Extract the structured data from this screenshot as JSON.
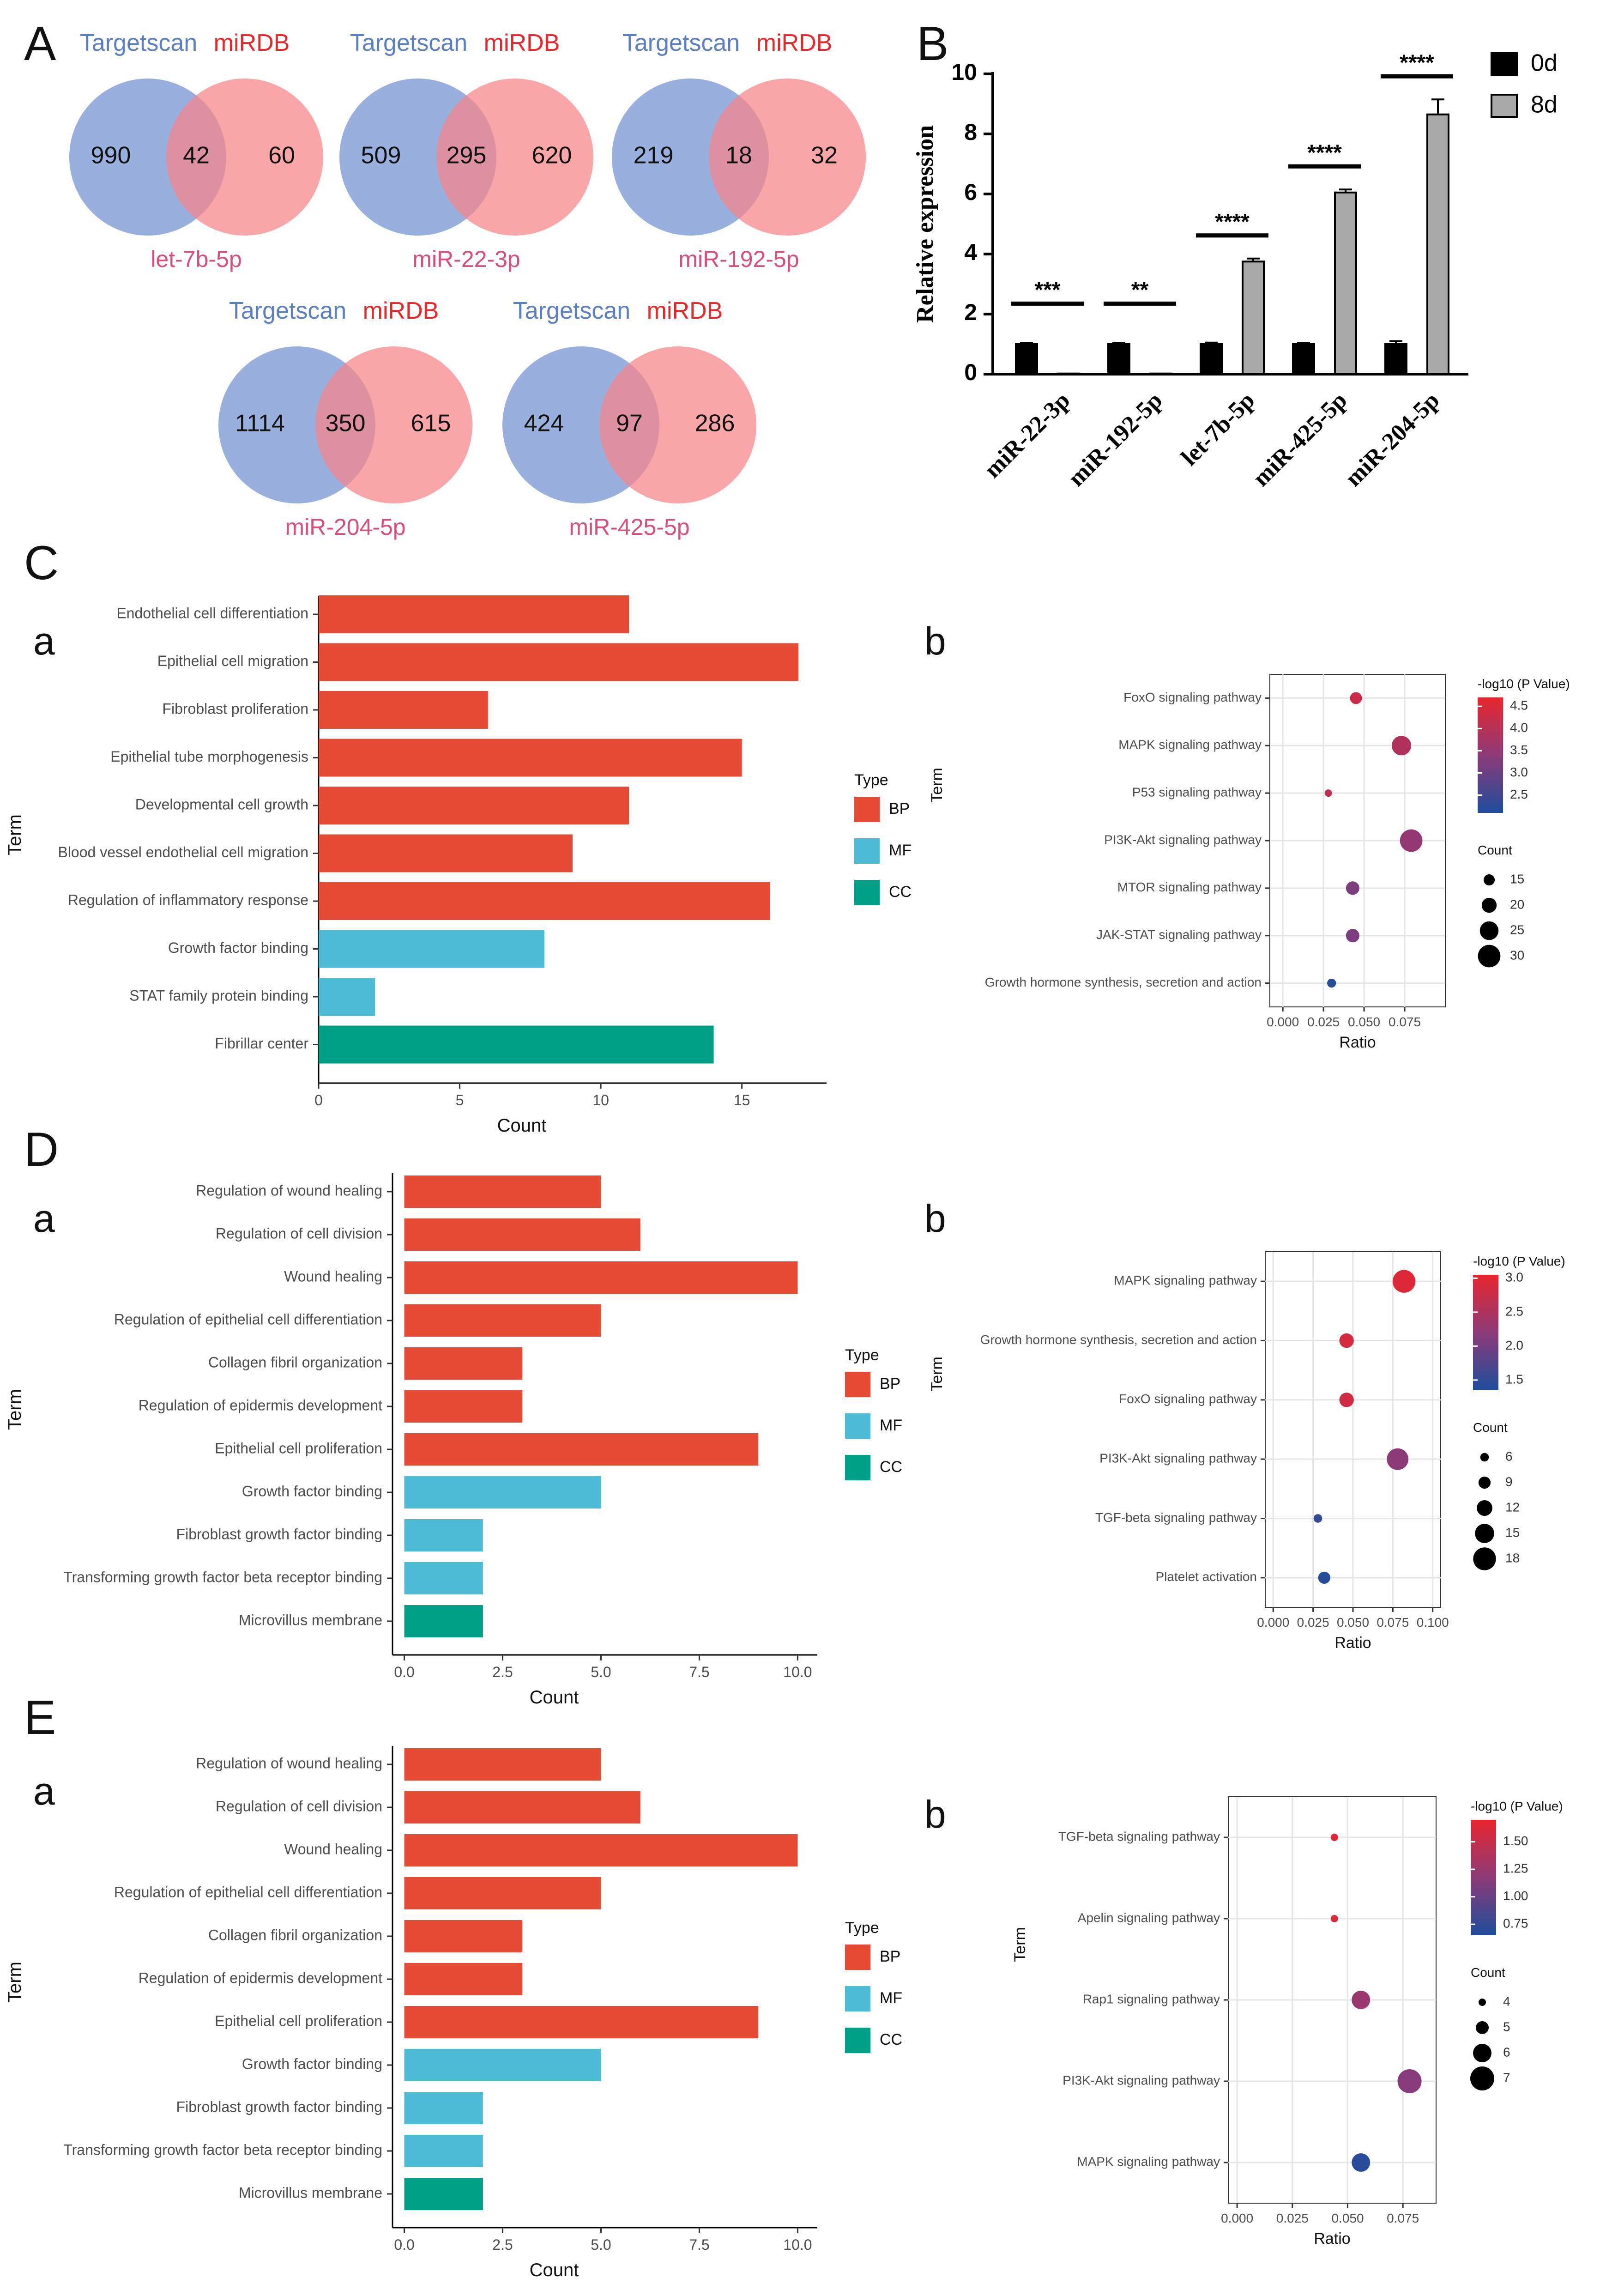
{
  "panels": {
    "A": "A",
    "B": "B",
    "C": "C",
    "D": "D",
    "E": "E",
    "Ca": "a",
    "Cb": "b",
    "Da": "a",
    "Db": "b",
    "Ea": "a",
    "Eb": "b"
  },
  "colors": {
    "targetscan": "#5b7fc4",
    "mirdb": "#e8272a",
    "mirna_label": "#d8507a",
    "venn_left": "#7f9bd6",
    "venn_right": "#f68486",
    "bp": "#e64b35",
    "mf": "#4dbbd5",
    "cc": "#00a087",
    "grad_high": "#e8262e",
    "grad_low": "#1e4d9c"
  },
  "venns": [
    {
      "mirna": "let-7b-5p",
      "left_label": "Targetscan",
      "right_label": "miRDB",
      "left_only": "990",
      "overlap": "42",
      "right_only": "60"
    },
    {
      "mirna": "miR-22-3p",
      "left_label": "Targetscan",
      "right_label": "miRDB",
      "left_only": "509",
      "overlap": "295",
      "right_only": "620"
    },
    {
      "mirna": "miR-192-5p",
      "left_label": "Targetscan",
      "right_label": "miRDB",
      "left_only": "219",
      "overlap": "18",
      "right_only": "32"
    },
    {
      "mirna": "miR-204-5p",
      "left_label": "Targetscan",
      "right_label": "miRDB",
      "left_only": "1114",
      "overlap": "350",
      "right_only": "615"
    },
    {
      "mirna": "miR-425-5p",
      "left_label": "Targetscan",
      "right_label": "miRDB",
      "left_only": "424",
      "overlap": "97",
      "right_only": "286"
    }
  ],
  "chart_data": [
    {
      "id": "B",
      "type": "bar",
      "ylabel": "Relative  expression",
      "ylim": [
        0,
        10
      ],
      "yticks": [
        "0",
        "2",
        "4",
        "6",
        "8",
        "10"
      ],
      "categories": [
        "miR-22-3p",
        "miR-192-5p",
        "let-7b-5p",
        "miR-425-5p",
        "miR-204-5p"
      ],
      "series": [
        {
          "name": "0d",
          "values": [
            1.0,
            1.0,
            1.0,
            1.0,
            1.0
          ],
          "errors": [
            0.04,
            0.04,
            0.05,
            0.04,
            0.1
          ],
          "color": "#000000"
        },
        {
          "name": "8d",
          "values": [
            0.02,
            0.02,
            3.75,
            6.05,
            8.65
          ],
          "errors": [
            0.0,
            0.0,
            0.1,
            0.1,
            0.5
          ],
          "color": "#a8a8a8"
        }
      ],
      "significance": [
        "***",
        "**",
        "****",
        "****",
        "****"
      ],
      "legend": "top-right"
    },
    {
      "id": "C-a",
      "type": "bar",
      "orientation": "horizontal",
      "xlabel": "Count",
      "ylabel": "Term",
      "xlim": [
        0,
        18
      ],
      "xticks": [
        "0",
        "5",
        "10",
        "15"
      ],
      "legend_title": "Type",
      "legend": [
        "BP",
        "MF",
        "CC"
      ],
      "categories": [
        "Endothelial cell differentiation",
        "Epithelial cell migration",
        "Fibroblast proliferation",
        "Epithelial tube morphogenesis",
        "Developmental cell growth",
        "Blood vessel endothelial cell migration",
        "Regulation of inflammatory response",
        "Growth factor binding",
        "STAT family protein binding",
        "Fibrillar center"
      ],
      "values": [
        11,
        17,
        6,
        15,
        11,
        9,
        16,
        8,
        2,
        14
      ],
      "types": [
        "BP",
        "BP",
        "BP",
        "BP",
        "BP",
        "BP",
        "BP",
        "MF",
        "MF",
        "CC"
      ]
    },
    {
      "id": "C-b",
      "type": "scatter",
      "xlabel": "Ratio",
      "ylabel": "Term",
      "xlim": [
        -0.008,
        0.1
      ],
      "xticks": [
        "0.000",
        "0.025",
        "0.050",
        "0.075"
      ],
      "color_title": "-log10 (P Value)",
      "color_range": [
        2.1,
        4.7
      ],
      "color_ticks": [
        "4.5",
        "4.0",
        "3.5",
        "3.0",
        "2.5"
      ],
      "size_title": "Count",
      "size_ticks": [
        "15",
        "20",
        "25",
        "30"
      ],
      "size_range": [
        10,
        32
      ],
      "terms": [
        "FoxO signaling pathway",
        "MAPK signaling pathway",
        "P53 signaling pathway",
        "PI3K-Akt signaling pathway",
        "MTOR signaling pathway",
        "JAK-STAT signaling pathway",
        "Growth hormone synthesis, secretion and action"
      ],
      "ratio": [
        0.045,
        0.073,
        0.028,
        0.079,
        0.043,
        0.043,
        0.03
      ],
      "neglog10p": [
        4.3,
        3.9,
        4.1,
        3.5,
        3.2,
        3.2,
        2.2
      ],
      "count": [
        16,
        26,
        10,
        30,
        18,
        18,
        12
      ]
    },
    {
      "id": "D-a",
      "type": "bar",
      "orientation": "horizontal",
      "xlabel": "Count",
      "ylabel": "Term",
      "xlim": [
        -0.3,
        10.5
      ],
      "xticks": [
        "0.0",
        "2.5",
        "5.0",
        "7.5",
        "10.0"
      ],
      "legend_title": "Type",
      "legend": [
        "BP",
        "MF",
        "CC"
      ],
      "categories": [
        "Regulation of wound healing",
        "Regulation of cell division",
        "Wound healing",
        "Regulation of epithelial cell differentiation",
        "Collagen fibril organization",
        "Regulation of epidermis development",
        "Epithelial cell proliferation",
        "Growth factor binding",
        "Fibroblast growth factor binding",
        "Transforming growth factor beta receptor binding",
        "Microvillus membrane"
      ],
      "values": [
        5,
        6,
        10,
        5,
        3,
        3,
        9,
        5,
        2,
        2,
        2
      ],
      "types": [
        "BP",
        "BP",
        "BP",
        "BP",
        "BP",
        "BP",
        "BP",
        "MF",
        "MF",
        "MF",
        "CC"
      ]
    },
    {
      "id": "D-b",
      "type": "scatter",
      "xlabel": "Ratio",
      "ylabel": "Term",
      "xlim": [
        -0.005,
        0.105
      ],
      "xticks": [
        "0.000",
        "0.025",
        "0.050",
        "0.075",
        "0.100"
      ],
      "color_title": "-log10 (P Value)",
      "color_range": [
        1.35,
        3.05
      ],
      "color_ticks": [
        "3.0",
        "2.5",
        "2.0",
        "1.5"
      ],
      "size_title": "Count",
      "size_ticks": [
        "6",
        "9",
        "12",
        "15",
        "18"
      ],
      "size_range": [
        5,
        19
      ],
      "terms": [
        "MAPK signaling pathway",
        "Growth hormone synthesis, secretion and action",
        "FoxO signaling pathway",
        "PI3K-Akt signaling pathway",
        "TGF-beta signaling pathway",
        "Platelet activation"
      ],
      "ratio": [
        0.082,
        0.046,
        0.046,
        0.078,
        0.028,
        0.032
      ],
      "neglog10p": [
        2.95,
        2.85,
        2.8,
        2.2,
        1.5,
        1.4
      ],
      "count": [
        18,
        11,
        11,
        17,
        6,
        9
      ]
    },
    {
      "id": "E-a",
      "type": "bar",
      "orientation": "horizontal",
      "xlabel": "Count",
      "ylabel": "Term",
      "xlim": [
        -0.3,
        10.5
      ],
      "xticks": [
        "0.0",
        "2.5",
        "5.0",
        "7.5",
        "10.0"
      ],
      "legend_title": "Type",
      "legend": [
        "BP",
        "MF",
        "CC"
      ],
      "categories": [
        "Regulation of wound healing",
        "Regulation of cell division",
        "Wound healing",
        "Regulation of epithelial cell differentiation",
        "Collagen fibril organization",
        "Regulation of epidermis development",
        "Epithelial cell proliferation",
        "Growth factor binding",
        "Fibroblast growth factor binding",
        "Transforming growth factor beta receptor binding",
        "Microvillus membrane"
      ],
      "values": [
        5,
        6,
        10,
        5,
        3,
        3,
        9,
        5,
        2,
        2,
        2
      ],
      "types": [
        "BP",
        "BP",
        "BP",
        "BP",
        "BP",
        "BP",
        "BP",
        "MF",
        "MF",
        "MF",
        "CC"
      ]
    },
    {
      "id": "E-b",
      "type": "scatter",
      "xlabel": "Ratio",
      "ylabel": "Term",
      "xlim": [
        -0.004,
        0.09
      ],
      "xticks": [
        "0.000",
        "0.025",
        "0.050",
        "0.075"
      ],
      "color_title": "-log10 (P Value)",
      "color_range": [
        0.65,
        1.7
      ],
      "color_ticks": [
        "1.50",
        "1.25",
        "1.00",
        "0.75"
      ],
      "size_title": "Count",
      "size_ticks": [
        "4",
        "5",
        "6",
        "7"
      ],
      "size_range": [
        4,
        7
      ],
      "terms": [
        "TGF-beta signaling pathway",
        "Apelin signaling pathway",
        "Rap1 signaling pathway",
        "PI3K-Akt signaling pathway",
        "MAPK signaling pathway"
      ],
      "ratio": [
        0.044,
        0.044,
        0.056,
        0.078,
        0.056
      ],
      "neglog10p": [
        1.65,
        1.6,
        1.25,
        1.15,
        0.7
      ],
      "count": [
        4,
        4,
        6,
        7,
        6
      ]
    }
  ]
}
